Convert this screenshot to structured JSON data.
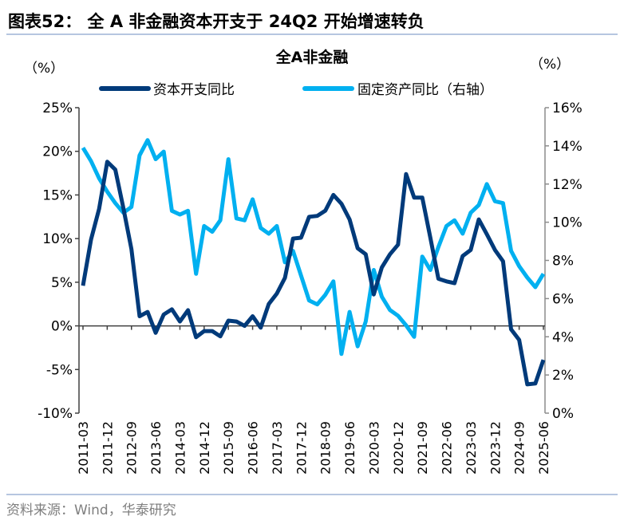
{
  "figure": {
    "heading": "图表52：  全 A 非金融资本开支于 24Q2 开始增速转负",
    "source": "资料来源：Wind，华泰研究"
  },
  "chart_data": {
    "type": "line",
    "title": "全A非金融",
    "ylabel_left": "（%）",
    "ylabel_right": "（%）",
    "y_left": {
      "range": [
        -10,
        25
      ],
      "ticks": [
        -10,
        -5,
        0,
        5,
        10,
        15,
        20,
        25
      ],
      "tick_labels": [
        "-10%",
        "-5%",
        "0%",
        "5%",
        "10%",
        "15%",
        "20%",
        "25%"
      ]
    },
    "y_right": {
      "range": [
        0,
        16
      ],
      "ticks": [
        0,
        2,
        4,
        6,
        8,
        10,
        12,
        14,
        16
      ],
      "tick_labels": [
        "0%",
        "2%",
        "4%",
        "6%",
        "8%",
        "10%",
        "12%",
        "14%",
        "16%"
      ]
    },
    "x_tick_labels": [
      "2011-03",
      "2011-12",
      "2012-09",
      "2013-06",
      "2014-03",
      "2014-12",
      "2015-09",
      "2016-06",
      "2017-03",
      "2017-12",
      "2018-09",
      "2019-06",
      "2020-03",
      "2020-12",
      "2021-09",
      "2022-06",
      "2023-03",
      "2023-12",
      "2024-09",
      "2025-06"
    ],
    "x_start": "2011-03",
    "x_end": "2025-06",
    "x_frequency": "quarterly",
    "legend_position": "top",
    "grid": false,
    "series": [
      {
        "name": "资本开支同比",
        "axis": "left",
        "color": "#003A7A",
        "values": [
          4.6,
          9.9,
          13.4,
          18.8,
          17.9,
          13.5,
          8.8,
          1.1,
          1.6,
          -0.8,
          1.3,
          1.9,
          0.5,
          1.8,
          -1.3,
          -0.6,
          -0.6,
          -1.2,
          0.6,
          0.5,
          0.0,
          1.1,
          -0.2,
          2.5,
          3.7,
          5.5,
          10.0,
          10.1,
          12.5,
          12.6,
          13.2,
          15.0,
          14.0,
          12.2,
          8.9,
          8.2,
          3.6,
          6.7,
          8.2,
          9.3,
          17.4,
          14.7,
          14.7,
          10.1,
          5.4,
          5.1,
          4.9,
          8.0,
          8.7,
          12.2,
          10.5,
          8.7,
          7.4,
          -0.4,
          -1.6,
          -6.7,
          -6.6,
          -3.9
        ]
      },
      {
        "name": "固定资产同比（右轴）",
        "axis": "right",
        "color": "#00B0F0",
        "values": [
          13.9,
          13.2,
          12.3,
          11.6,
          11.0,
          10.5,
          10.8,
          13.5,
          14.3,
          13.3,
          13.7,
          10.6,
          10.4,
          10.6,
          7.3,
          9.8,
          9.5,
          10.1,
          13.3,
          10.2,
          10.1,
          11.2,
          9.7,
          9.4,
          9.8,
          7.9,
          8.5,
          7.2,
          5.9,
          5.7,
          6.2,
          6.9,
          3.1,
          5.3,
          3.5,
          4.8,
          7.5,
          6.1,
          5.4,
          5.1,
          4.6,
          4.0,
          8.2,
          7.5,
          8.7,
          9.8,
          10.1,
          9.4,
          10.5,
          10.9,
          12.0,
          11.1,
          11.0,
          8.5,
          7.7,
          7.1,
          6.6,
          7.3
        ]
      }
    ]
  }
}
